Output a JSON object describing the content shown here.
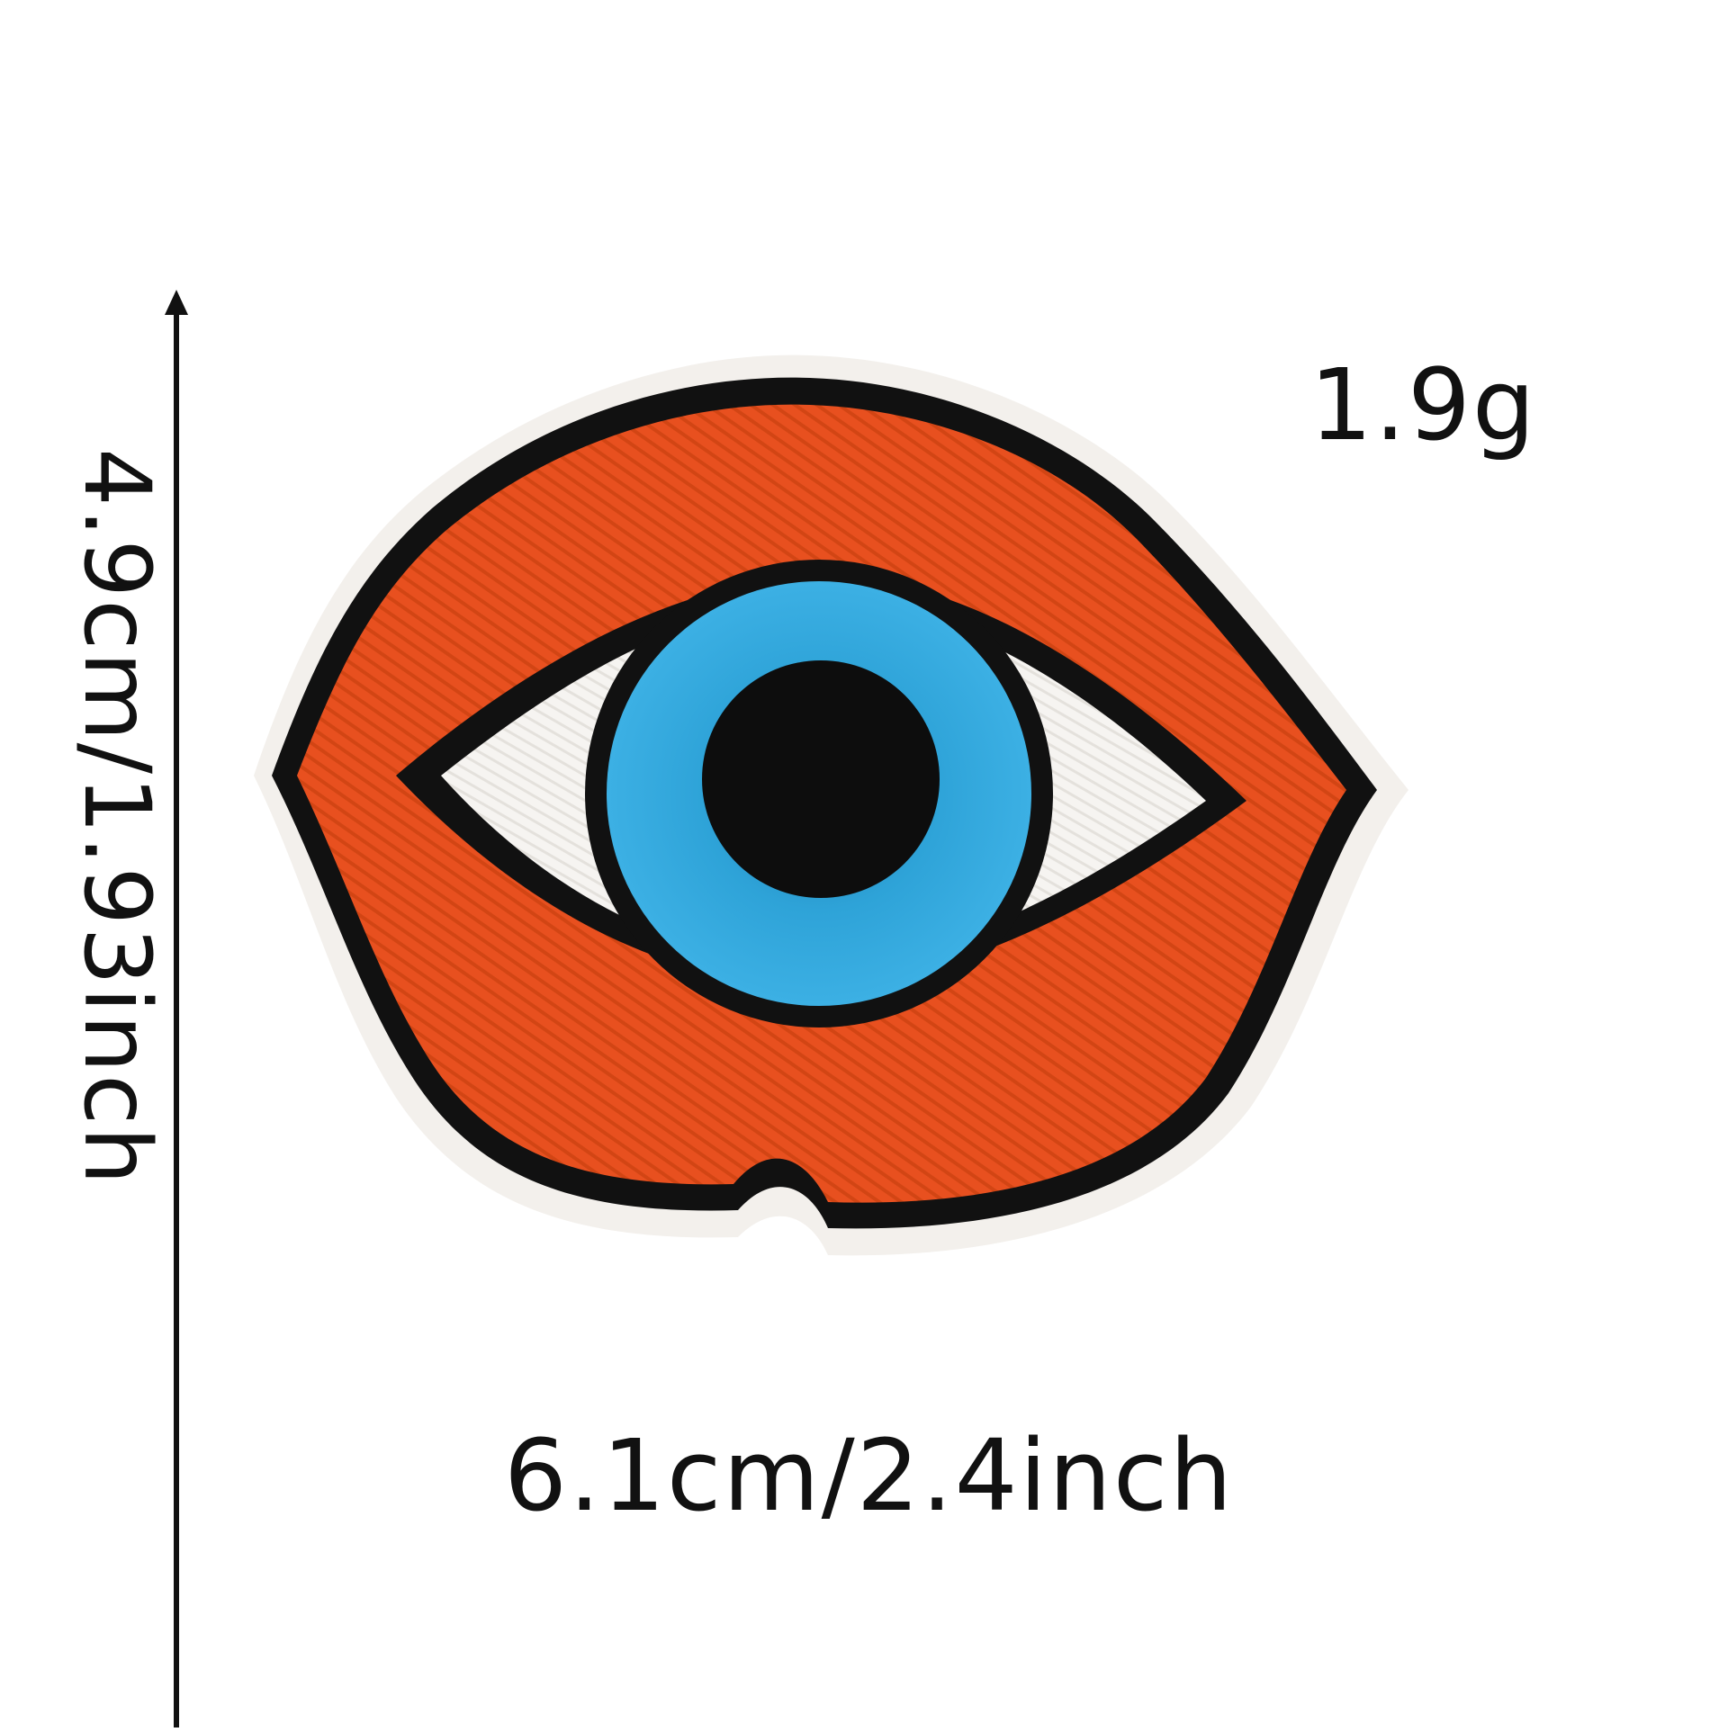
{
  "product": {
    "weight": "1.9g",
    "height_dimension": "4.9cm/1.93inch",
    "width_dimension": "6.1cm/2.4inch"
  },
  "colors": {
    "background": "#ffffff",
    "felt_border": "#f3f0ec",
    "outline": "#111111",
    "eyelid_orange": "#e8501f",
    "sclera_white": "#f6f4f1",
    "iris_blue": "#2ea3d8",
    "pupil_black": "#0d0d0d",
    "arrow": "#111111"
  },
  "icons": {
    "patch": "evil-eye-embroidered-patch",
    "vertical_arrow": "arrow-up-icon",
    "horizontal_arrow": "arrow-right-icon"
  }
}
